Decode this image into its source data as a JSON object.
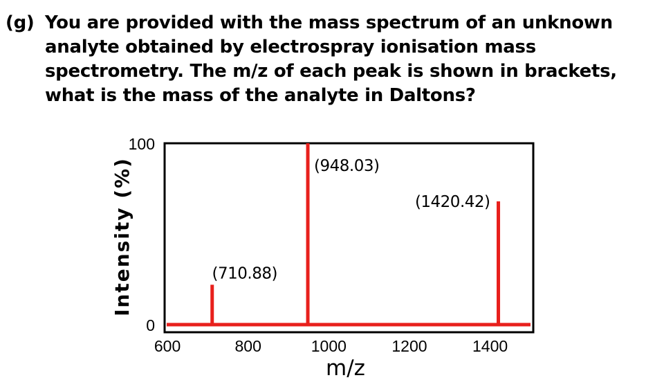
{
  "question": {
    "label": "(g)",
    "lines": [
      "You are provided with the mass spectrum of an unknown",
      "analyte obtained by electrospray ionisation mass",
      "spectrometry. The m/z of each peak is shown in brackets,",
      "what is the mass of the analyte in Daltons?"
    ]
  },
  "chart_data": {
    "type": "bar",
    "subtype": "mass-spectrum-stick-plot",
    "title": "",
    "xlabel": "m/z",
    "ylabel": "Intensity (%)",
    "xlim": [
      593,
      1507
    ],
    "ylim": [
      0,
      100
    ],
    "x_ticks": [
      "600",
      "800",
      "1000",
      "1200",
      "1400"
    ],
    "x_tick_values": [
      600,
      800,
      1000,
      1200,
      1400
    ],
    "y_ticks": [
      "0",
      "100"
    ],
    "y_tick_values": [
      0,
      100
    ],
    "grid": false,
    "legend": false,
    "axis_color": "#000000",
    "peak_color": "#e8201c",
    "peaks": [
      {
        "mz": 710.88,
        "intensity": 22,
        "label": "(710.88)",
        "label_side": "above"
      },
      {
        "mz": 948.03,
        "intensity": 100,
        "label": "(948.03)",
        "label_side": "right"
      },
      {
        "mz": 1420.42,
        "intensity": 68,
        "label": "(1420.42)",
        "label_side": "left"
      }
    ]
  }
}
